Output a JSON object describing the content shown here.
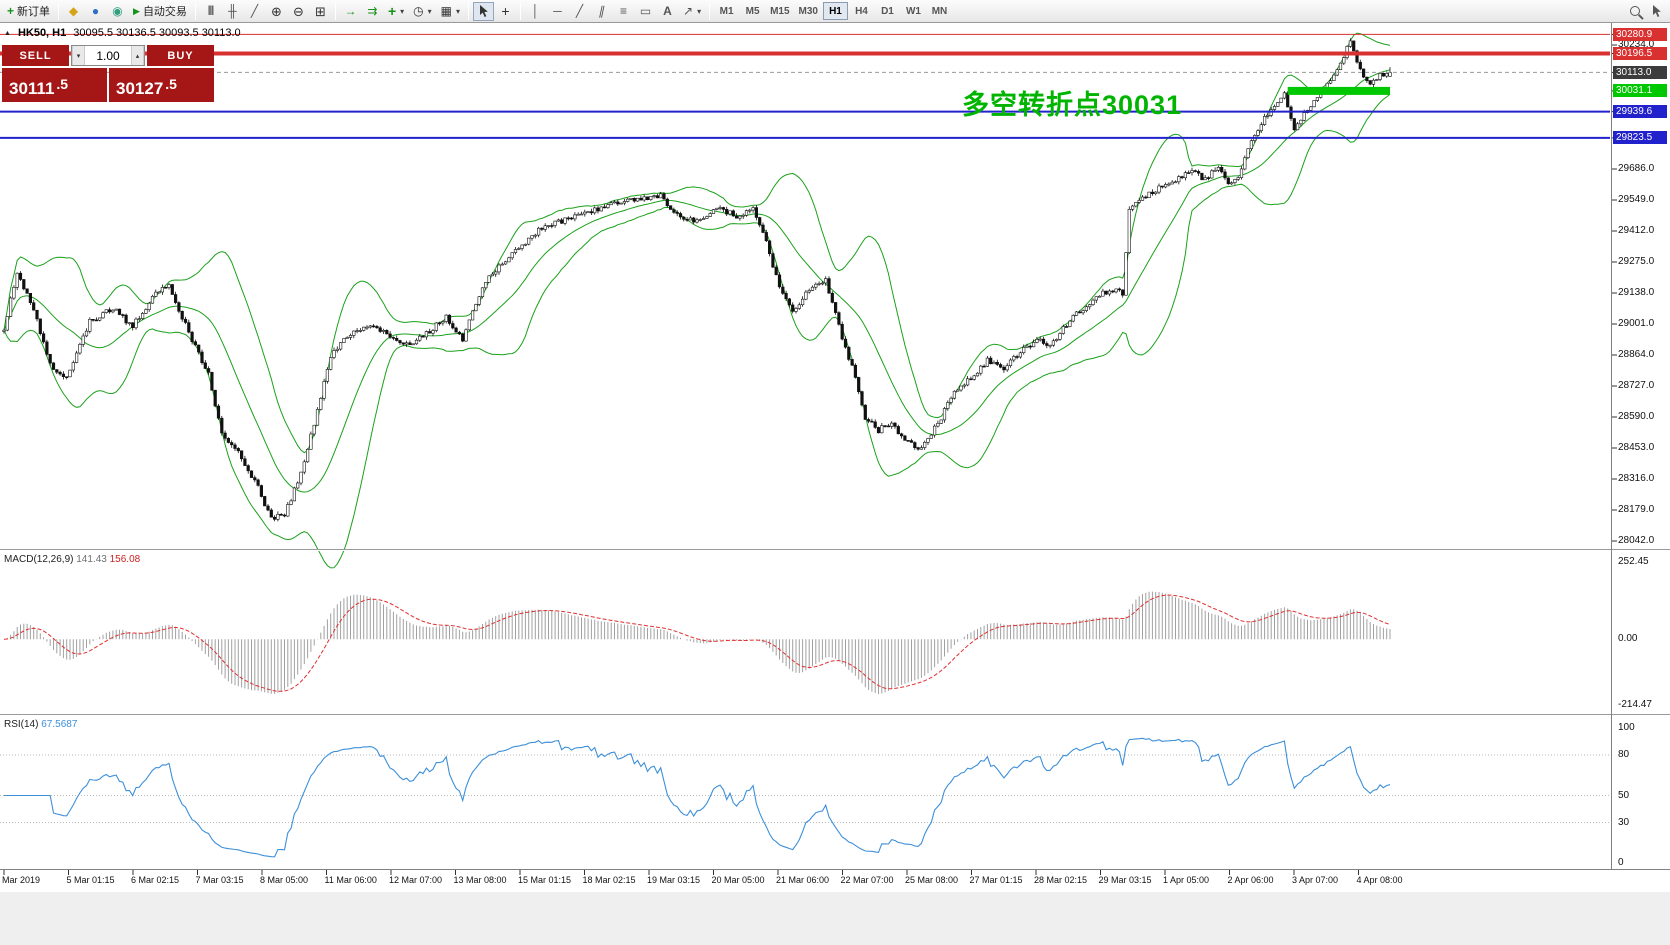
{
  "toolbar": {
    "new_order": "新订单",
    "auto_trading": "自动交易",
    "timeframes": [
      "M1",
      "M5",
      "M15",
      "M30",
      "H1",
      "H4",
      "D1",
      "W1",
      "MN"
    ],
    "active_timeframe": "H1"
  },
  "icons": {
    "new_order": "+",
    "symbols": "◆",
    "news": "●",
    "community": "◉",
    "auto_play": "▶",
    "bar_chart": "|||",
    "candle_chart": "╫",
    "line_chart": "╱",
    "zoom_in": "⊕",
    "zoom_out": "⊖",
    "tile_windows": "⊞",
    "auto_scroll": "→",
    "chart_shift": "⇉",
    "indicators": "+",
    "periods": "◷",
    "templates": "▦",
    "crosshair": "+",
    "vertical_line": "│",
    "horizontal_line": "─",
    "trend_line": "╱",
    "channel": "∥",
    "fibonacci": "≡",
    "shapes": "▭",
    "text_tool": "A",
    "arrows_tool": "↗",
    "dropdown": "▾",
    "collapse": "▲",
    "spin_up": "▴",
    "spin_down": "▾"
  },
  "symbol_info": {
    "symbol": "HK50, H1",
    "ohlc": "30095.5 30136.5 30093.5 30113.0"
  },
  "trade_panel": {
    "sell_label": "SELL",
    "buy_label": "BUY",
    "volume": "1.00",
    "sell_price_main": "30111",
    "sell_price_frac": ".5",
    "buy_price_main": "30127",
    "buy_price_frac": ".5"
  },
  "annotation": {
    "text": "多空转折点30031",
    "color": "#00b400"
  },
  "macd_panel": {
    "name": "MACD(12,26,9)",
    "value_main": "141.43",
    "value_signal": "156.08",
    "axis_labels": [
      "252.45",
      "0.00",
      "-214.47"
    ]
  },
  "rsi_panel": {
    "name": "RSI(14)",
    "value": "67.5687",
    "axis_labels": [
      100,
      80,
      50,
      30,
      0
    ],
    "levels": [
      80,
      50,
      30
    ]
  },
  "price_axis": {
    "gridlines": [
      30234.0,
      29686.0,
      29549.0,
      29412.0,
      29275.0,
      29138.0,
      29001.0,
      28864.0,
      28727.0,
      28590.0,
      28453.0,
      28316.0,
      28179.0,
      28042.0
    ]
  },
  "time_axis": {
    "labels": [
      "Mar 2019",
      "5 Mar 01:15",
      "6 Mar 02:15",
      "7 Mar 03:15",
      "8 Mar 05:00",
      "11 Mar 06:00",
      "12 Mar 07:00",
      "13 Mar 08:00",
      "15 Mar 01:15",
      "18 Mar 02:15",
      "19 Mar 03:15",
      "20 Mar 05:00",
      "21 Mar 06:00",
      "22 Mar 07:00",
      "25 Mar 08:00",
      "27 Mar 01:15",
      "28 Mar 02:15",
      "29 Mar 03:15",
      "1 Apr 05:00",
      "2 Apr 06:00",
      "3 Apr 07:00",
      "4 Apr 08:00"
    ]
  },
  "chart_data": {
    "type": "candlestick",
    "symbol": "HK50",
    "period": "H1",
    "current_ohlc": {
      "open": 30095.5,
      "high": 30136.5,
      "low": 30093.5,
      "close": 30113.0
    },
    "visible_price_range": [
      28042.0,
      30280.9
    ],
    "price_lines": [
      {
        "price": 30280.9,
        "color": "#d93030",
        "width": 1,
        "style": "solid",
        "span": "full"
      },
      {
        "price": 30196.5,
        "color": "#d93030",
        "width": 4,
        "style": "solid",
        "span": "full"
      },
      {
        "price": 30113.0,
        "color": "#999999",
        "label_bg": "#3c3c3c",
        "width": 1,
        "style": "dash",
        "span": "full",
        "role": "last-price"
      },
      {
        "price": 30031.1,
        "color": "#00c800",
        "width": 8,
        "style": "solid",
        "span": "segment",
        "bar_from": 389,
        "bar_to": 420
      },
      {
        "price": 29939.6,
        "color": "#2222cc",
        "width": 2,
        "style": "solid",
        "span": "full"
      },
      {
        "price": 29823.5,
        "color": "#2222cc",
        "width": 2,
        "style": "solid",
        "span": "full"
      }
    ],
    "indicators": [
      {
        "name": "Bollinger Bands",
        "period": 20,
        "deviation": 2,
        "color": "#1aa11a"
      },
      {
        "name": "MACD",
        "fast": 12,
        "slow": 26,
        "signal": 9,
        "histogram_color": "#a0a0a0",
        "signal_color": "#e03030"
      },
      {
        "name": "RSI",
        "period": 14,
        "color": "#3d8fd9"
      }
    ],
    "n_candles": 421,
    "price_waypoints": [
      [
        0,
        28980
      ],
      [
        4,
        29230
      ],
      [
        9,
        29060
      ],
      [
        14,
        28820
      ],
      [
        19,
        28760
      ],
      [
        26,
        29010
      ],
      [
        33,
        29070
      ],
      [
        39,
        28990
      ],
      [
        45,
        29120
      ],
      [
        50,
        29180
      ],
      [
        54,
        29030
      ],
      [
        58,
        28900
      ],
      [
        62,
        28780
      ],
      [
        66,
        28520
      ],
      [
        71,
        28430
      ],
      [
        76,
        28310
      ],
      [
        81,
        28140
      ],
      [
        85,
        28160
      ],
      [
        89,
        28300
      ],
      [
        94,
        28560
      ],
      [
        99,
        28860
      ],
      [
        104,
        28950
      ],
      [
        111,
        29000
      ],
      [
        117,
        28950
      ],
      [
        123,
        28900
      ],
      [
        128,
        28960
      ],
      [
        134,
        29030
      ],
      [
        139,
        28930
      ],
      [
        145,
        29170
      ],
      [
        151,
        29270
      ],
      [
        157,
        29350
      ],
      [
        163,
        29430
      ],
      [
        170,
        29460
      ],
      [
        177,
        29500
      ],
      [
        185,
        29530
      ],
      [
        193,
        29555
      ],
      [
        199,
        29570
      ],
      [
        204,
        29480
      ],
      [
        210,
        29450
      ],
      [
        216,
        29510
      ],
      [
        222,
        29480
      ],
      [
        227,
        29510
      ],
      [
        231,
        29360
      ],
      [
        235,
        29160
      ],
      [
        239,
        29060
      ],
      [
        245,
        29170
      ],
      [
        249,
        29190
      ],
      [
        253,
        28990
      ],
      [
        257,
        28810
      ],
      [
        261,
        28590
      ],
      [
        265,
        28530
      ],
      [
        269,
        28570
      ],
      [
        273,
        28480
      ],
      [
        278,
        28450
      ],
      [
        283,
        28560
      ],
      [
        288,
        28700
      ],
      [
        293,
        28760
      ],
      [
        298,
        28840
      ],
      [
        303,
        28800
      ],
      [
        308,
        28880
      ],
      [
        313,
        28930
      ],
      [
        317,
        28900
      ],
      [
        321,
        28980
      ],
      [
        326,
        29060
      ],
      [
        331,
        29120
      ],
      [
        335,
        29150
      ],
      [
        339,
        29140
      ],
      [
        341,
        29500
      ],
      [
        345,
        29560
      ],
      [
        350,
        29600
      ],
      [
        355,
        29640
      ],
      [
        360,
        29680
      ],
      [
        364,
        29640
      ],
      [
        368,
        29700
      ],
      [
        371,
        29610
      ],
      [
        374,
        29650
      ],
      [
        377,
        29780
      ],
      [
        381,
        29890
      ],
      [
        385,
        29960
      ],
      [
        388,
        30020
      ],
      [
        391,
        29870
      ],
      [
        394,
        29930
      ],
      [
        398,
        30000
      ],
      [
        402,
        30080
      ],
      [
        405,
        30150
      ],
      [
        408,
        30250
      ],
      [
        411,
        30120
      ],
      [
        414,
        30060
      ],
      [
        417,
        30100
      ],
      [
        420,
        30113
      ]
    ]
  }
}
